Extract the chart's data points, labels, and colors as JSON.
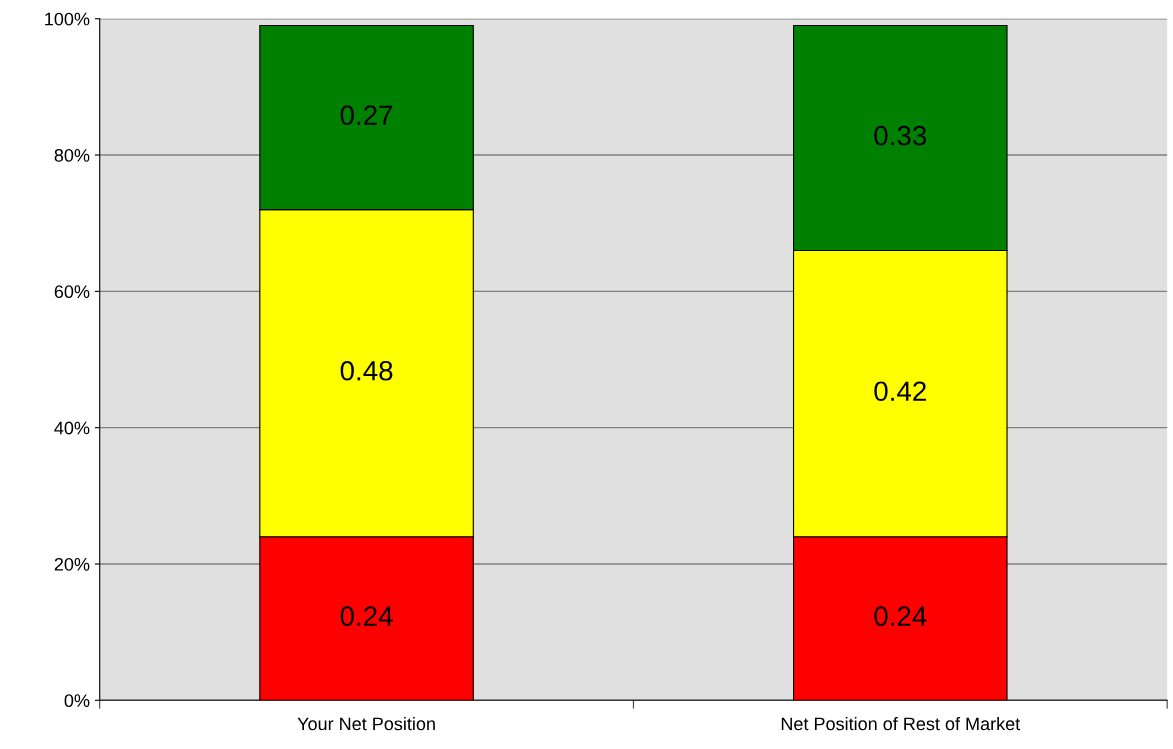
{
  "chart_data": {
    "type": "bar",
    "stacked": true,
    "data_labels": true,
    "grid": "y",
    "categories": [
      "Your Net Position",
      "Net Position of Rest of Market"
    ],
    "series": [
      {
        "color": "#ff0000",
        "values": [
          0.24,
          0.24
        ]
      },
      {
        "color": "#ffff00",
        "values": [
          0.48,
          0.42
        ]
      },
      {
        "color": "#008000",
        "values": [
          0.27,
          0.33
        ]
      }
    ],
    "ylim": [
      0,
      1
    ],
    "yticks": [
      {
        "value": 0,
        "label": "0%"
      },
      {
        "value": 0.2,
        "label": "20%"
      },
      {
        "value": 0.4,
        "label": "40%"
      },
      {
        "value": 0.6,
        "label": "60%"
      },
      {
        "value": 0.8,
        "label": "80%"
      },
      {
        "value": 1,
        "label": "100%"
      }
    ]
  }
}
